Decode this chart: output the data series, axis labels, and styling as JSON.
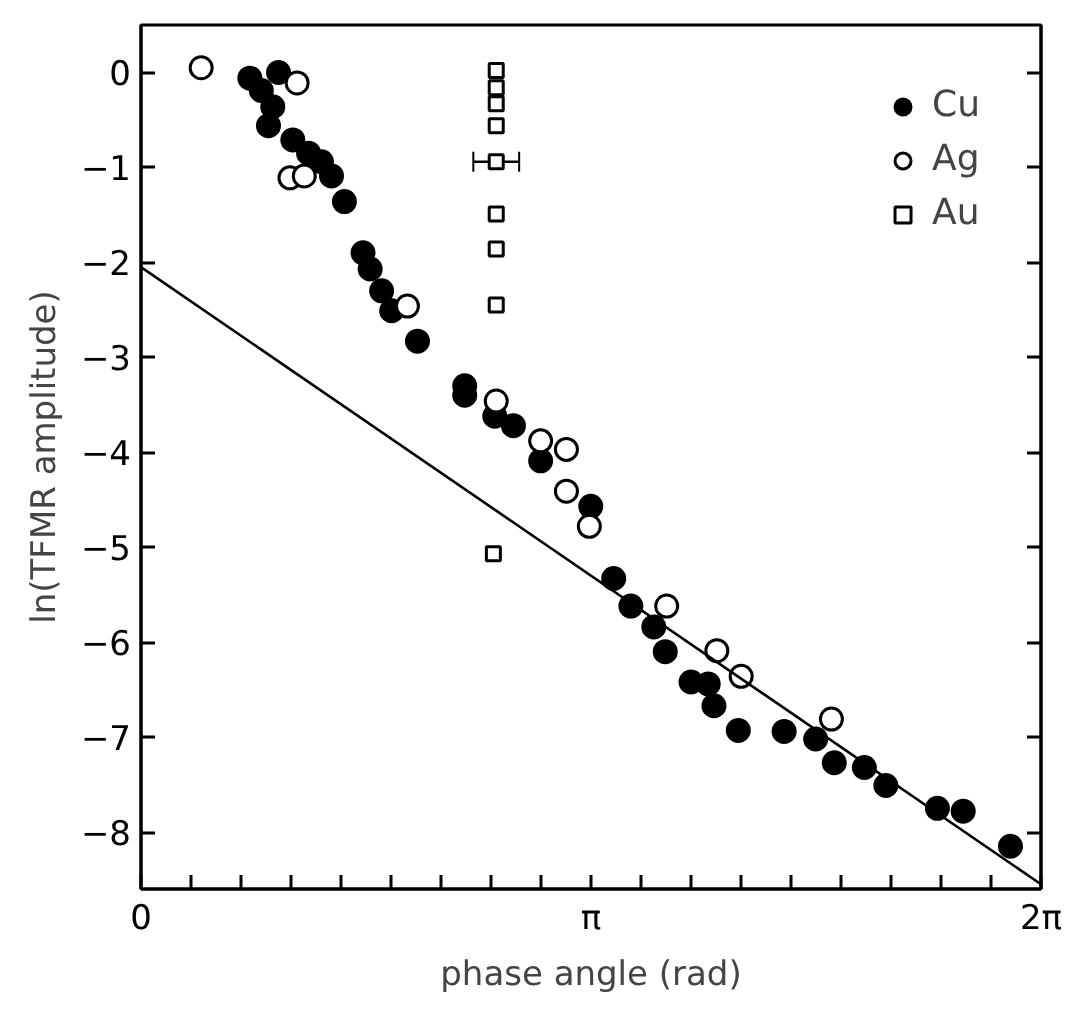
{
  "chart_data": {
    "type": "scatter",
    "xlabel": "phase angle (rad)",
    "ylabel": "ln(TFMR amplitude)",
    "xlim": [
      0,
      6.2832
    ],
    "ylim": [
      -8.6,
      0.5
    ],
    "xticks": [
      {
        "value": 0,
        "label": "0"
      },
      {
        "value": 0.3491,
        "label": null
      },
      {
        "value": 0.6981,
        "label": null
      },
      {
        "value": 1.0472,
        "label": null
      },
      {
        "value": 1.3963,
        "label": null
      },
      {
        "value": 1.7453,
        "label": null
      },
      {
        "value": 2.0944,
        "label": null
      },
      {
        "value": 2.4435,
        "label": null
      },
      {
        "value": 2.7925,
        "label": null
      },
      {
        "value": 3.1416,
        "label": "π"
      },
      {
        "value": 3.4907,
        "label": null
      },
      {
        "value": 3.8397,
        "label": null
      },
      {
        "value": 4.1888,
        "label": null
      },
      {
        "value": 4.5379,
        "label": null
      },
      {
        "value": 4.8869,
        "label": null
      },
      {
        "value": 5.236,
        "label": null
      },
      {
        "value": 5.5851,
        "label": null
      },
      {
        "value": 5.9341,
        "label": null
      },
      {
        "value": 6.2832,
        "label": "2π"
      }
    ],
    "yticks": [
      0,
      -1,
      -2,
      -3,
      -4,
      -5,
      -6,
      -7,
      -8
    ],
    "grid": false,
    "legend": "top right",
    "series": [
      {
        "name": "Cu",
        "color": "#000000",
        "marker": "circle",
        "x": [
          0.76,
          0.96,
          0.84,
          0.92,
          0.89,
          1.06,
          1.17,
          1.26,
          1.33,
          1.42,
          1.55,
          1.6,
          1.68,
          1.75,
          1.93,
          2.26,
          2.26,
          2.47,
          2.6,
          2.79,
          3.14,
          3.3,
          3.42,
          3.58,
          3.66,
          3.84,
          3.96,
          4.0,
          4.17,
          4.49,
          4.71,
          4.84,
          5.05,
          5.2,
          5.56,
          5.74,
          6.07
        ],
        "values": [
          -0.06,
          0.0,
          -0.19,
          -0.36,
          -0.56,
          -0.71,
          -0.85,
          -0.94,
          -1.09,
          -1.36,
          -1.9,
          -2.07,
          -2.3,
          -2.51,
          -2.83,
          -3.3,
          -3.4,
          -3.62,
          -3.72,
          -4.09,
          -4.57,
          -5.33,
          -5.62,
          -5.84,
          -6.1,
          -6.42,
          -6.44,
          -6.67,
          -6.93,
          -6.94,
          -7.02,
          -7.27,
          -7.32,
          -7.51,
          -7.75,
          -7.78,
          -8.15
        ]
      },
      {
        "name": "Ag",
        "color": "#ffffff",
        "marker": "circle",
        "x": [
          0.42,
          1.09,
          1.04,
          1.14,
          1.86,
          2.48,
          2.79,
          2.97,
          2.97,
          3.13,
          3.67,
          4.02,
          4.19,
          4.82
        ],
        "values": [
          0.05,
          -0.11,
          -1.11,
          -1.09,
          -2.46,
          -3.46,
          -3.88,
          -3.97,
          -4.41,
          -4.78,
          -5.62,
          -6.09,
          -6.36,
          -6.81
        ]
      },
      {
        "name": "Au",
        "color": "#ffffff",
        "marker": "square",
        "x": [
          2.48,
          2.48,
          2.48,
          2.48,
          2.48,
          2.48,
          2.48,
          2.48,
          2.46
        ],
        "values": [
          0.02,
          -0.16,
          -0.33,
          -0.56,
          -0.94,
          -1.49,
          -1.86,
          -2.45,
          -5.07
        ],
        "xerrors": [
          null,
          null,
          null,
          null,
          0.16,
          null,
          null,
          null,
          null
        ]
      },
      {
        "type": "line",
        "color": "#000000",
        "line_style": "solid",
        "x": [
          0,
          6.2832
        ],
        "values": [
          -2.05,
          -8.55
        ]
      }
    ]
  }
}
